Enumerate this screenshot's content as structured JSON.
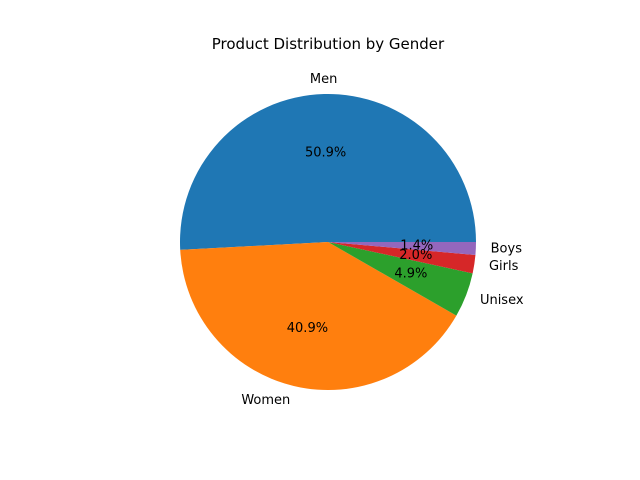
{
  "chart_data": {
    "type": "pie",
    "title": "Product Distribution by Gender",
    "labels": [
      "Men",
      "Women",
      "Unisex",
      "Girls",
      "Boys"
    ],
    "values": [
      50.9,
      40.9,
      4.9,
      2.0,
      1.4
    ],
    "pct_labels": [
      "50.9%",
      "40.9%",
      "4.9%",
      "2.0%",
      "1.4%"
    ],
    "colors": [
      "#1f77b4",
      "#ff7f0e",
      "#2ca02c",
      "#d62728",
      "#9467bd"
    ],
    "start_angle_deg": 0,
    "direction": "counterclockwise"
  }
}
